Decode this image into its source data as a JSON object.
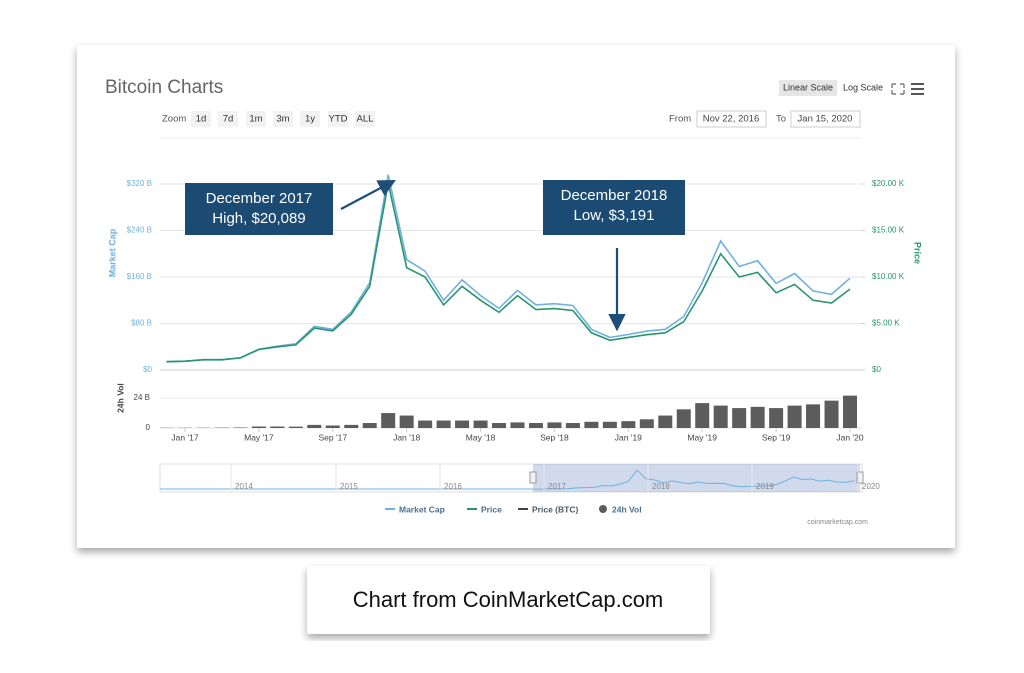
{
  "header": {
    "title": "Bitcoin Charts",
    "zoom_label": "Zoom",
    "zoom_buttons": [
      "1d",
      "7d",
      "1m",
      "3m",
      "1y",
      "YTD",
      "ALL"
    ],
    "from_label": "From",
    "from": "Nov 22, 2016",
    "to_label": "To",
    "to": "Jan 15, 2020",
    "scale_buttons": [
      "Linear Scale",
      "Log Scale"
    ]
  },
  "chart_data": [
    {
      "type": "line",
      "x": [
        "2016-12",
        "2017-01",
        "2017-02",
        "2017-03",
        "2017-04",
        "2017-05",
        "2017-06",
        "2017-07",
        "2017-08",
        "2017-09",
        "2017-10",
        "2017-11",
        "2017-12",
        "2018-01",
        "2018-02",
        "2018-03",
        "2018-04",
        "2018-05",
        "2018-06",
        "2018-07",
        "2018-08",
        "2018-09",
        "2018-10",
        "2018-11",
        "2018-12",
        "2019-01",
        "2019-02",
        "2019-03",
        "2019-04",
        "2019-05",
        "2019-06",
        "2019-07",
        "2019-08",
        "2019-09",
        "2019-10",
        "2019-11",
        "2019-12",
        "2020-01"
      ],
      "series": [
        {
          "name": "Market Cap",
          "color": "#6fb1e0",
          "axis": "y",
          "values": [
            14000000000.0,
            15000000000.0,
            18000000000.0,
            18000000000.0,
            21000000000.0,
            36000000000.0,
            41000000000.0,
            45000000000.0,
            75000000000.0,
            70000000000.0,
            100000000000.0,
            150000000000.0,
            336000000000.0,
            190000000000.0,
            170000000000.0,
            120000000000.0,
            155000000000.0,
            128000000000.0,
            106000000000.0,
            137000000000.0,
            112000000000.0,
            114000000000.0,
            111000000000.0,
            70000000000.0,
            56000000000.0,
            61000000000.0,
            67000000000.0,
            70000000000.0,
            92000000000.0,
            150000000000.0,
            222000000000.0,
            178000000000.0,
            188000000000.0,
            149000000000.0,
            166000000000.0,
            136000000000.0,
            130000000000.0,
            158000000000.0
          ]
        },
        {
          "name": "Price",
          "color": "#27956f",
          "axis": "y2",
          "values": [
            900,
            950,
            1100,
            1100,
            1300,
            2200,
            2500,
            2700,
            4500,
            4200,
            6000,
            9000,
            20089,
            11000,
            10000,
            7000,
            9000,
            7500,
            6200,
            8000,
            6500,
            6600,
            6400,
            4000,
            3191,
            3500,
            3800,
            4000,
            5200,
            8500,
            12500,
            10000,
            10500,
            8300,
            9200,
            7500,
            7200,
            8700
          ]
        }
      ],
      "hidden_series": [
        {
          "name": "Price (BTC)",
          "color": "#444444"
        }
      ],
      "ylabel": "Market Cap",
      "y2label": "Price",
      "ylim": [
        0,
        340000000000
      ],
      "yticks": [
        {
          "value": 0,
          "label": "$0"
        },
        {
          "value": 80000000000,
          "label": "$80 B"
        },
        {
          "value": 160000000000,
          "label": "$160 B"
        },
        {
          "value": 240000000000,
          "label": "$240 B"
        },
        {
          "value": 320000000000,
          "label": "$320 B"
        }
      ],
      "y2lim": [
        0,
        21250
      ],
      "y2ticks": [
        {
          "value": 0,
          "label": "$0"
        },
        {
          "value": 5000,
          "label": "$5.00 K"
        },
        {
          "value": 10000,
          "label": "$10.00 K"
        },
        {
          "value": 15000,
          "label": "$15.00 K"
        },
        {
          "value": 20000,
          "label": "$20.00 K"
        }
      ],
      "grid": true,
      "annotations": [
        {
          "lines": [
            "December 2017",
            "High, $20,089"
          ]
        },
        {
          "lines": [
            "December 2018",
            "Low, $3,191"
          ]
        }
      ]
    },
    {
      "type": "bar",
      "x": [
        "2016-12",
        "2017-01",
        "2017-02",
        "2017-03",
        "2017-04",
        "2017-05",
        "2017-06",
        "2017-07",
        "2017-08",
        "2017-09",
        "2017-10",
        "2017-11",
        "2017-12",
        "2018-01",
        "2018-02",
        "2018-03",
        "2018-04",
        "2018-05",
        "2018-06",
        "2018-07",
        "2018-08",
        "2018-09",
        "2018-10",
        "2018-11",
        "2018-12",
        "2019-01",
        "2019-02",
        "2019-03",
        "2019-04",
        "2019-05",
        "2019-06",
        "2019-07",
        "2019-08",
        "2019-09",
        "2019-10",
        "2019-11",
        "2019-12",
        "2020-01"
      ],
      "series": [
        {
          "name": "24h Vol",
          "color": "#5c5c5c",
          "values": [
            200000000.0,
            200000000.0,
            200000000.0,
            300000000.0,
            400000000.0,
            1200000000.0,
            1200000000.0,
            1100000000.0,
            2500000000.0,
            2000000000.0,
            2500000000.0,
            4000000000.0,
            12000000000.0,
            10000000000.0,
            6000000000.0,
            6000000000.0,
            6000000000.0,
            6000000000.0,
            4000000000.0,
            4500000000.0,
            4000000000.0,
            4500000000.0,
            4000000000.0,
            5000000000.0,
            5000000000.0,
            5500000000.0,
            7000000000.0,
            10000000000.0,
            15000000000.0,
            20000000000.0,
            18000000000.0,
            16000000000.0,
            17000000000.0,
            16000000000.0,
            18000000000.0,
            19000000000.0,
            22000000000.0,
            26000000000.0
          ]
        }
      ],
      "ylabel": "24h Vol",
      "ylim": [
        0,
        45000000000
      ],
      "yticks": [
        0,
        {
          "value": 24000000000,
          "label": "24 B"
        }
      ],
      "xticks": [
        {
          "value": "2017-01",
          "label": "Jan '17"
        },
        {
          "value": "2017-05",
          "label": "May '17"
        },
        {
          "value": "2017-09",
          "label": "Sep '17"
        },
        {
          "value": "2018-01",
          "label": "Jan '18"
        },
        {
          "value": "2018-05",
          "label": "May '18"
        },
        {
          "value": "2018-09",
          "label": "Sep '18"
        },
        {
          "value": "2019-01",
          "label": "Jan '19"
        },
        {
          "value": "2019-05",
          "label": "May '19"
        },
        {
          "value": "2019-09",
          "label": "Sep '19"
        },
        {
          "value": "2020-01",
          "label": "Jan '20"
        }
      ],
      "grid": true
    }
  ],
  "navigator": {
    "labels": [
      "2014",
      "2015",
      "2016",
      "2017",
      "2018",
      "2019",
      "2020"
    ]
  },
  "credit": "coinmarketcap.com",
  "caption": "Chart from CoinMarketCap.com"
}
